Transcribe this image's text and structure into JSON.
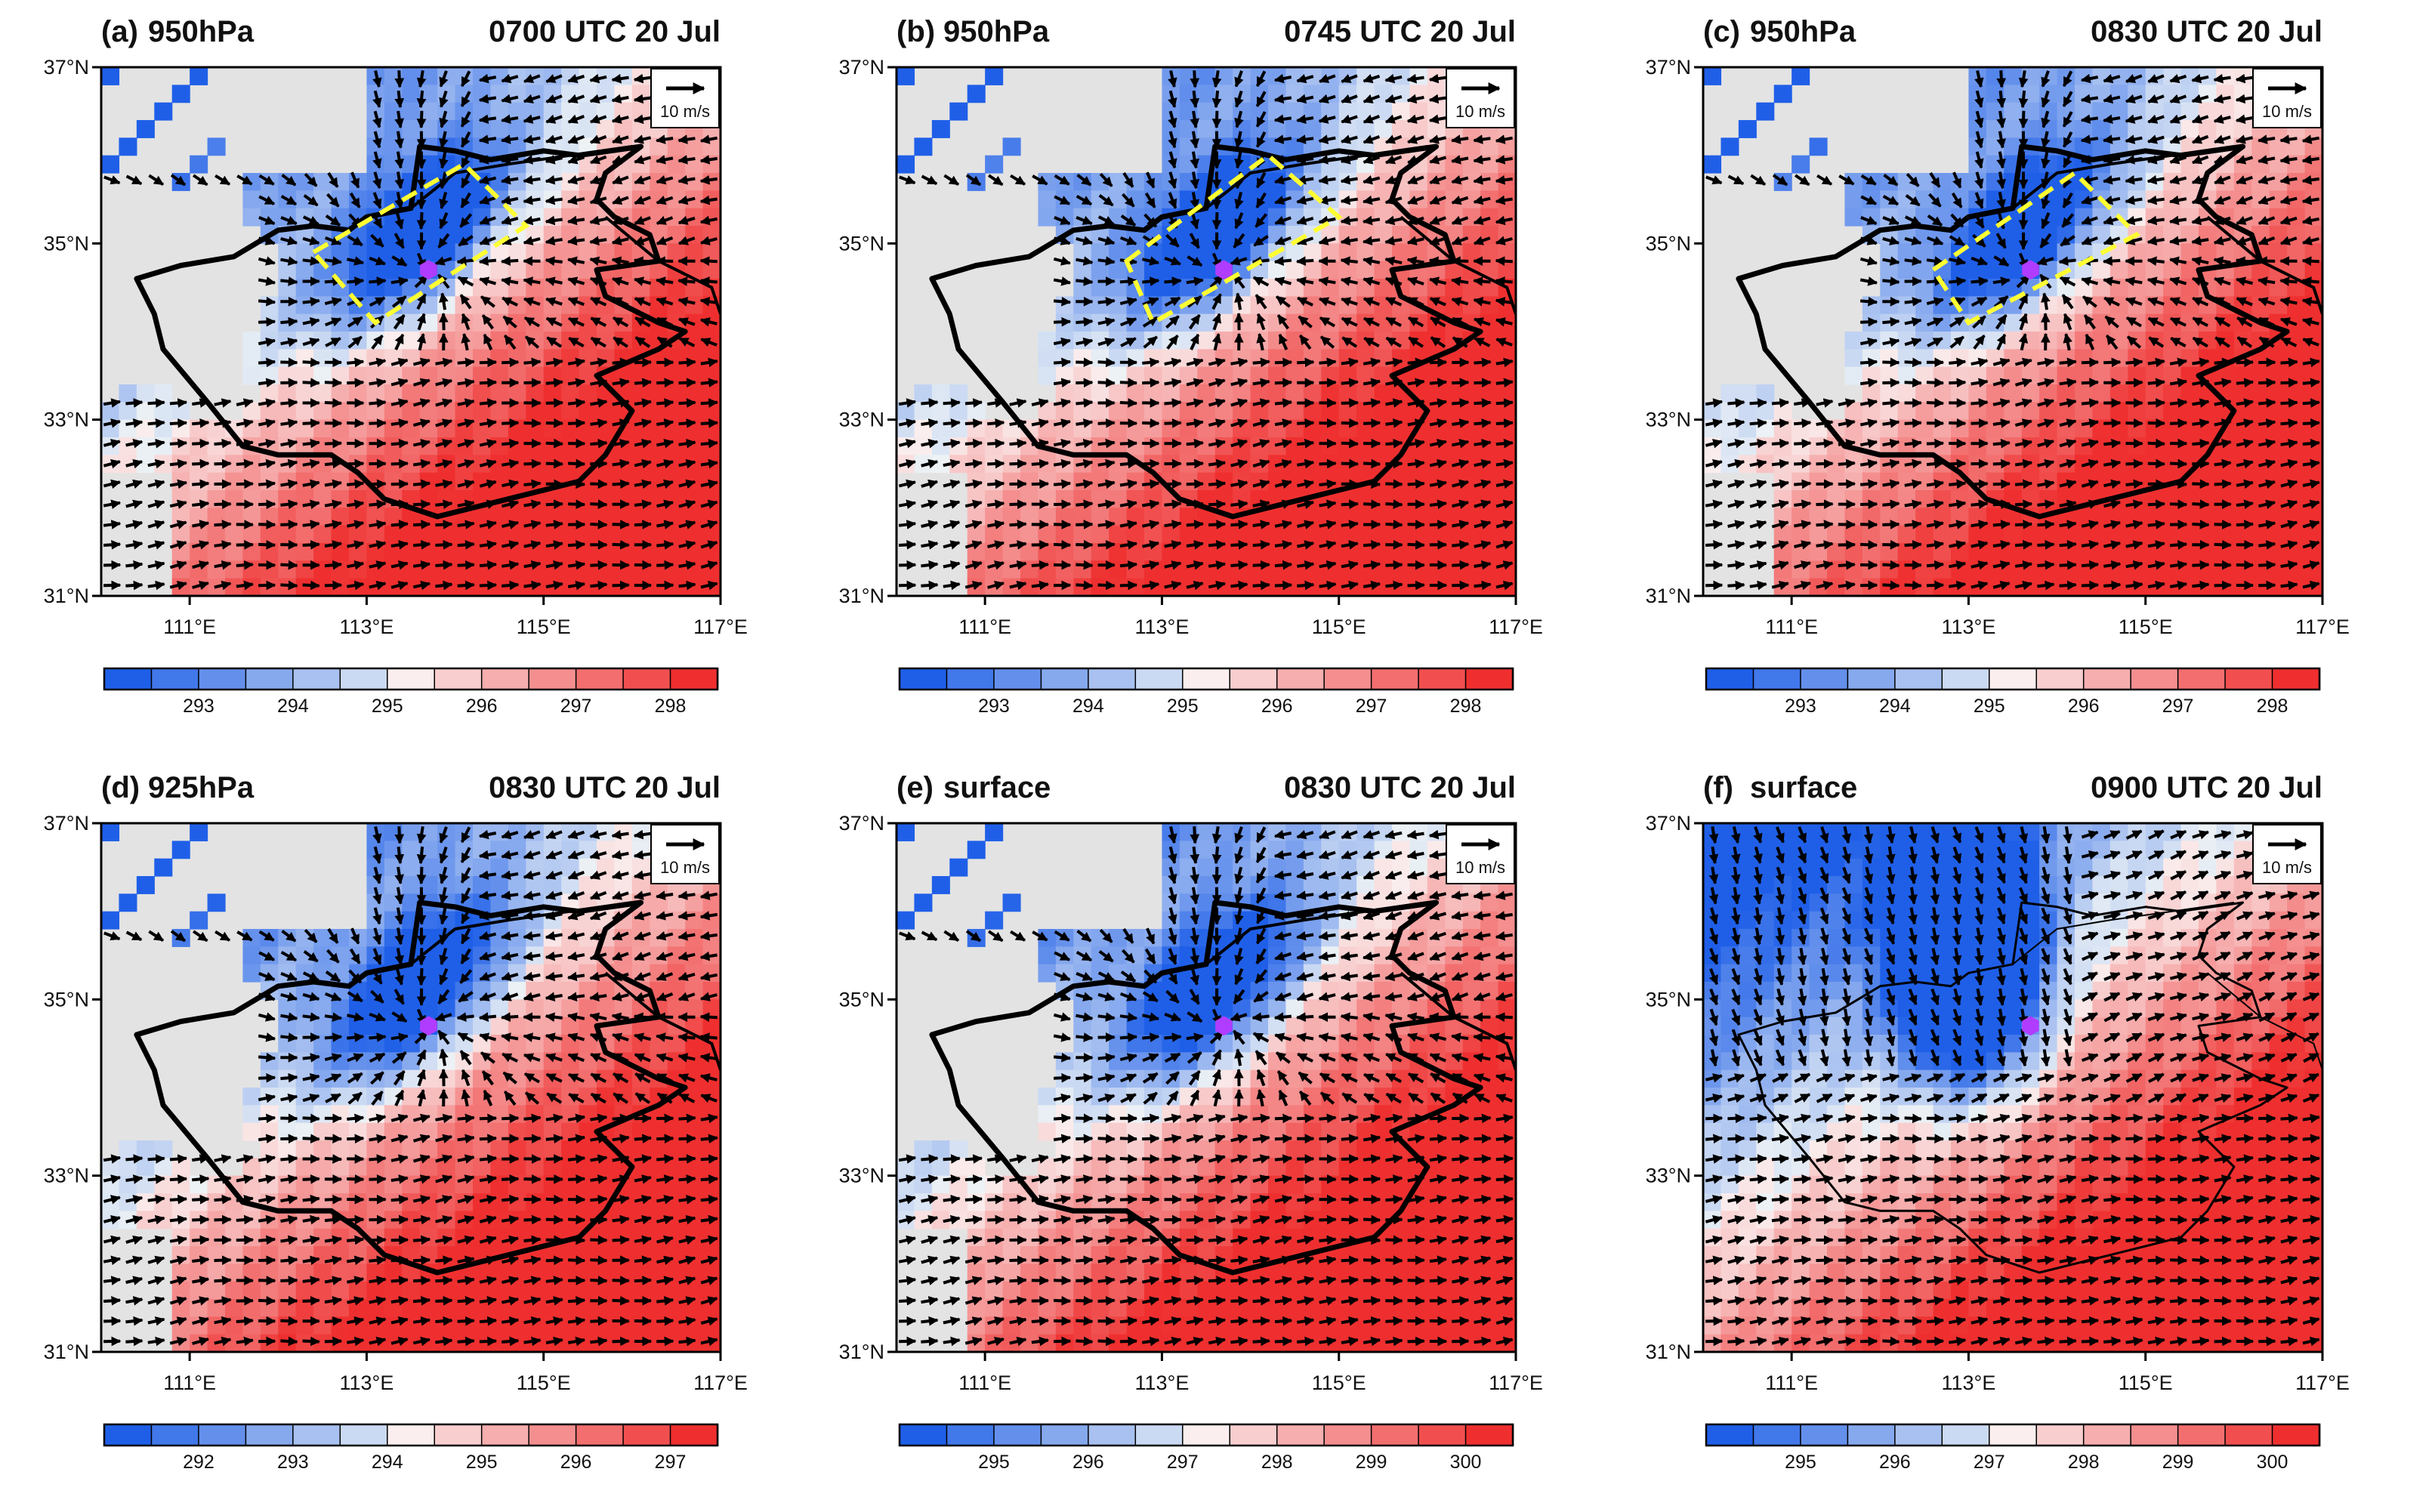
{
  "figure": {
    "panels": [
      {
        "id": "a",
        "label": "(a)",
        "level": "950hPa",
        "time": "0700 UTC 20 Jul",
        "colorbar": [
          "293",
          "294",
          "295",
          "296",
          "297",
          "298"
        ],
        "color_levels": [
          292.5,
          298.5
        ],
        "has_box": true,
        "full_field": false,
        "box": [
          [
            112.4,
            34.9
          ],
          [
            114.1,
            35.9
          ],
          [
            114.8,
            35.2
          ],
          [
            113.1,
            34.1
          ]
        ]
      },
      {
        "id": "b",
        "label": "(b)",
        "level": "950hPa",
        "time": "0745 UTC 20 Jul",
        "colorbar": [
          "293",
          "294",
          "295",
          "296",
          "297",
          "298"
        ],
        "color_levels": [
          292.5,
          298.5
        ],
        "has_box": true,
        "full_field": false,
        "box": [
          [
            112.6,
            34.8
          ],
          [
            114.2,
            36.0
          ],
          [
            115.0,
            35.3
          ],
          [
            112.9,
            34.1
          ]
        ]
      },
      {
        "id": "c",
        "label": "(c)",
        "level": "950hPa",
        "time": "0830 UTC 20 Jul",
        "colorbar": [
          "293",
          "294",
          "295",
          "296",
          "297",
          "298"
        ],
        "color_levels": [
          292.5,
          298.5
        ],
        "has_box": true,
        "full_field": false,
        "box": [
          [
            112.6,
            34.7
          ],
          [
            114.2,
            35.8
          ],
          [
            114.9,
            35.1
          ],
          [
            113.0,
            34.1
          ]
        ]
      },
      {
        "id": "d",
        "label": "(d)",
        "level": "925hPa",
        "time": "0830 UTC 20 Jul",
        "colorbar": [
          "292",
          "293",
          "294",
          "295",
          "296",
          "297"
        ],
        "color_levels": [
          291.5,
          297.5
        ],
        "has_box": false,
        "full_field": false
      },
      {
        "id": "e",
        "label": "(e)",
        "level": "surface",
        "time": "0830 UTC 20 Jul",
        "colorbar": [
          "295",
          "296",
          "297",
          "298",
          "299",
          "300"
        ],
        "color_levels": [
          294.5,
          300.5
        ],
        "has_box": false,
        "full_field": false
      },
      {
        "id": "f",
        "label": "(f)",
        "level": "surface",
        "time": "0900 UTC 20 Jul",
        "colorbar": [
          "295",
          "296",
          "297",
          "298",
          "299",
          "300"
        ],
        "color_levels": [
          294.5,
          300.5
        ],
        "has_box": false,
        "full_field": true
      }
    ],
    "axes": {
      "lon_range": [
        110,
        117
      ],
      "lat_range": [
        31,
        37
      ],
      "lon_ticks": [
        "111°E",
        "113°E",
        "115°E",
        "117°E"
      ],
      "lat_ticks": [
        "37°N",
        "35°N",
        "33°N",
        "31°N"
      ]
    },
    "reference_vector": "10 m/s",
    "station_marker": {
      "lon": 113.7,
      "lat": 34.7
    },
    "colors": {
      "cold": "#1f5fe8",
      "warm": "#ef2f2f",
      "land_missing": "#e3e3e3",
      "box": "#ffff33",
      "station": "#b03cff"
    }
  }
}
